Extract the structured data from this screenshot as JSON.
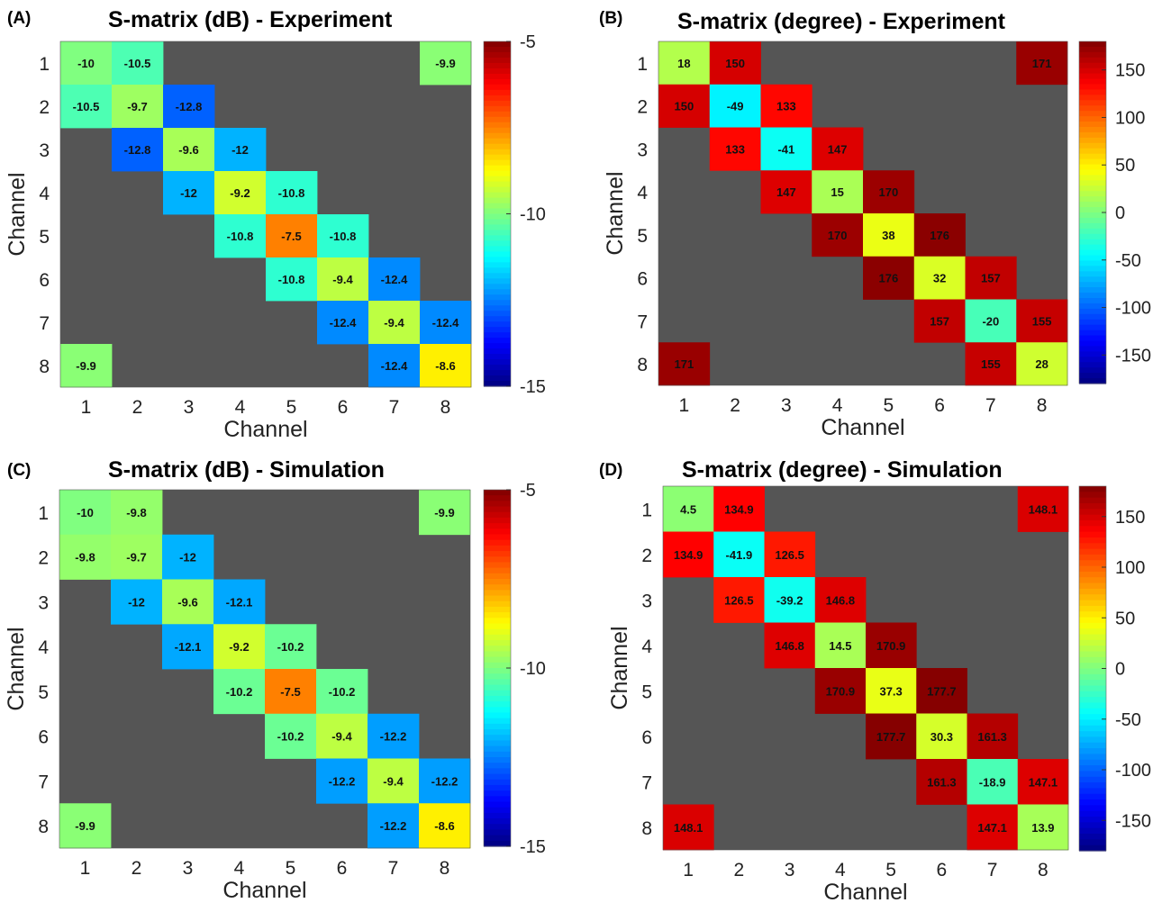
{
  "chart_data": [
    {
      "panel_label": "(A)",
      "type": "heatmap",
      "title": "S-matrix (dB) - Experiment",
      "xlabel": "Channel",
      "ylabel": "Channel",
      "x_ticks": [
        "1",
        "2",
        "3",
        "4",
        "5",
        "6",
        "7",
        "8"
      ],
      "y_ticks": [
        "1",
        "2",
        "3",
        "4",
        "5",
        "6",
        "7",
        "8"
      ],
      "clim": [
        -15,
        -5
      ],
      "colorbar_ticks": [
        -5,
        -10,
        -15
      ],
      "colormap": "jet",
      "missing_color": "#555555",
      "matrix": [
        [
          -10,
          -10.5,
          null,
          null,
          null,
          null,
          null,
          -9.9
        ],
        [
          -10.5,
          -9.7,
          -12.8,
          null,
          null,
          null,
          null,
          null
        ],
        [
          null,
          -12.8,
          -9.6,
          -12,
          null,
          null,
          null,
          null
        ],
        [
          null,
          null,
          -12,
          -9.2,
          -10.8,
          null,
          null,
          null
        ],
        [
          null,
          null,
          null,
          -10.8,
          -7.5,
          -10.8,
          null,
          null
        ],
        [
          null,
          null,
          null,
          null,
          -10.8,
          -9.4,
          -12.4,
          null
        ],
        [
          null,
          null,
          null,
          null,
          null,
          -12.4,
          -9.4,
          -12.4
        ],
        [
          -9.9,
          null,
          null,
          null,
          null,
          null,
          -12.4,
          -8.6
        ]
      ]
    },
    {
      "panel_label": "(B)",
      "type": "heatmap",
      "title": "S-matrix (degree) - Experiment",
      "xlabel": "Channel",
      "ylabel": "Channel",
      "x_ticks": [
        "1",
        "2",
        "3",
        "4",
        "5",
        "6",
        "7",
        "8"
      ],
      "y_ticks": [
        "1",
        "2",
        "3",
        "4",
        "5",
        "6",
        "7",
        "8"
      ],
      "clim": [
        -180,
        180
      ],
      "colorbar_ticks": [
        150,
        100,
        50,
        0,
        -50,
        -100,
        -150
      ],
      "colormap": "jet",
      "missing_color": "#555555",
      "matrix": [
        [
          18,
          150,
          null,
          null,
          null,
          null,
          null,
          171
        ],
        [
          150,
          -49,
          133,
          null,
          null,
          null,
          null,
          null
        ],
        [
          null,
          133,
          -41,
          147,
          null,
          null,
          null,
          null
        ],
        [
          null,
          null,
          147,
          15,
          170,
          null,
          null,
          null
        ],
        [
          null,
          null,
          null,
          170,
          38,
          176,
          null,
          null
        ],
        [
          null,
          null,
          null,
          null,
          176,
          32,
          157,
          null
        ],
        [
          null,
          null,
          null,
          null,
          null,
          157,
          -20,
          155
        ],
        [
          171,
          null,
          null,
          null,
          null,
          null,
          155,
          28
        ]
      ]
    },
    {
      "panel_label": "(C)",
      "type": "heatmap",
      "title": "S-matrix (dB) - Simulation",
      "xlabel": "Channel",
      "ylabel": "Channel",
      "x_ticks": [
        "1",
        "2",
        "3",
        "4",
        "5",
        "6",
        "7",
        "8"
      ],
      "y_ticks": [
        "1",
        "2",
        "3",
        "4",
        "5",
        "6",
        "7",
        "8"
      ],
      "clim": [
        -15,
        -5
      ],
      "colorbar_ticks": [
        -5,
        -10,
        -15
      ],
      "colormap": "jet",
      "missing_color": "#555555",
      "matrix": [
        [
          -10,
          -9.8,
          null,
          null,
          null,
          null,
          null,
          -9.9
        ],
        [
          -9.8,
          -9.7,
          -12,
          null,
          null,
          null,
          null,
          null
        ],
        [
          null,
          -12,
          -9.6,
          -12.1,
          null,
          null,
          null,
          null
        ],
        [
          null,
          null,
          -12.1,
          -9.2,
          -10.2,
          null,
          null,
          null
        ],
        [
          null,
          null,
          null,
          -10.2,
          -7.5,
          -10.2,
          null,
          null
        ],
        [
          null,
          null,
          null,
          null,
          -10.2,
          -9.4,
          -12.2,
          null
        ],
        [
          null,
          null,
          null,
          null,
          null,
          -12.2,
          -9.4,
          -12.2
        ],
        [
          -9.9,
          null,
          null,
          null,
          null,
          null,
          -12.2,
          -8.6
        ]
      ]
    },
    {
      "panel_label": "(D)",
      "type": "heatmap",
      "title": "S-matrix (degree) - Simulation",
      "xlabel": "Channel",
      "ylabel": "Channel",
      "x_ticks": [
        "1",
        "2",
        "3",
        "4",
        "5",
        "6",
        "7",
        "8"
      ],
      "y_ticks": [
        "1",
        "2",
        "3",
        "4",
        "5",
        "6",
        "7",
        "8"
      ],
      "clim": [
        -180,
        180
      ],
      "colorbar_ticks": [
        150,
        100,
        50,
        0,
        -50,
        -100,
        -150
      ],
      "colormap": "jet",
      "missing_color": "#555555",
      "matrix": [
        [
          4.5,
          134.9,
          null,
          null,
          null,
          null,
          null,
          148.1
        ],
        [
          134.9,
          -41.9,
          126.5,
          null,
          null,
          null,
          null,
          null
        ],
        [
          null,
          126.5,
          -39.2,
          146.8,
          null,
          null,
          null,
          null
        ],
        [
          null,
          null,
          146.8,
          14.5,
          170.9,
          null,
          null,
          null
        ],
        [
          null,
          null,
          null,
          170.9,
          37.3,
          177.7,
          null,
          null
        ],
        [
          null,
          null,
          null,
          null,
          177.7,
          30.3,
          161.3,
          null
        ],
        [
          null,
          null,
          null,
          null,
          null,
          161.3,
          -18.9,
          147.1
        ],
        [
          148.1,
          null,
          null,
          null,
          null,
          null,
          147.1,
          13.9
        ]
      ]
    }
  ]
}
